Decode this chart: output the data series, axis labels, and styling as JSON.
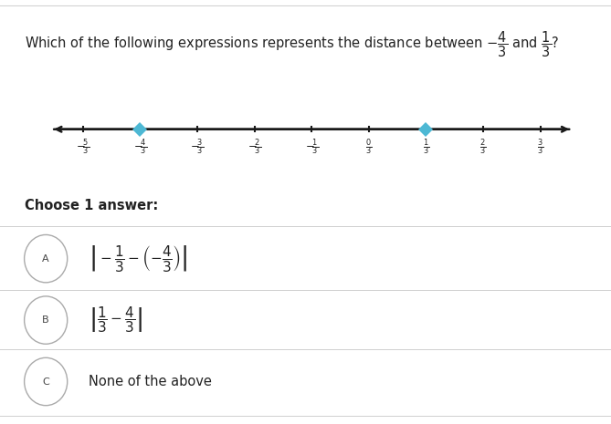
{
  "background_color": "#ffffff",
  "separator_color": "#d0d0d0",
  "line_color": "#1a1a1a",
  "dot_color": "#4db8d4",
  "circle_color": "#aaaaaa",
  "text_color": "#222222",
  "title_line1": "Which of the following expressions represents the distance between $-\\dfrac{4}{3}$ and $\\dfrac{1}{3}$?",
  "number_line_ticks": [
    -5,
    -4,
    -3,
    -2,
    -1,
    0,
    1,
    2,
    3
  ],
  "highlighted_ticks": [
    -4,
    1
  ],
  "tick_label_fontsize": 8.5,
  "choose_text": "Choose 1 answer:",
  "answer_A_latex": "$\\left|-\\dfrac{1}{3} - \\left(-\\dfrac{4}{3}\\right)\\right|$",
  "answer_B_latex": "$\\left|\\dfrac{1}{3} - \\dfrac{4}{3}\\right|$",
  "answer_C_text": "None of the above"
}
